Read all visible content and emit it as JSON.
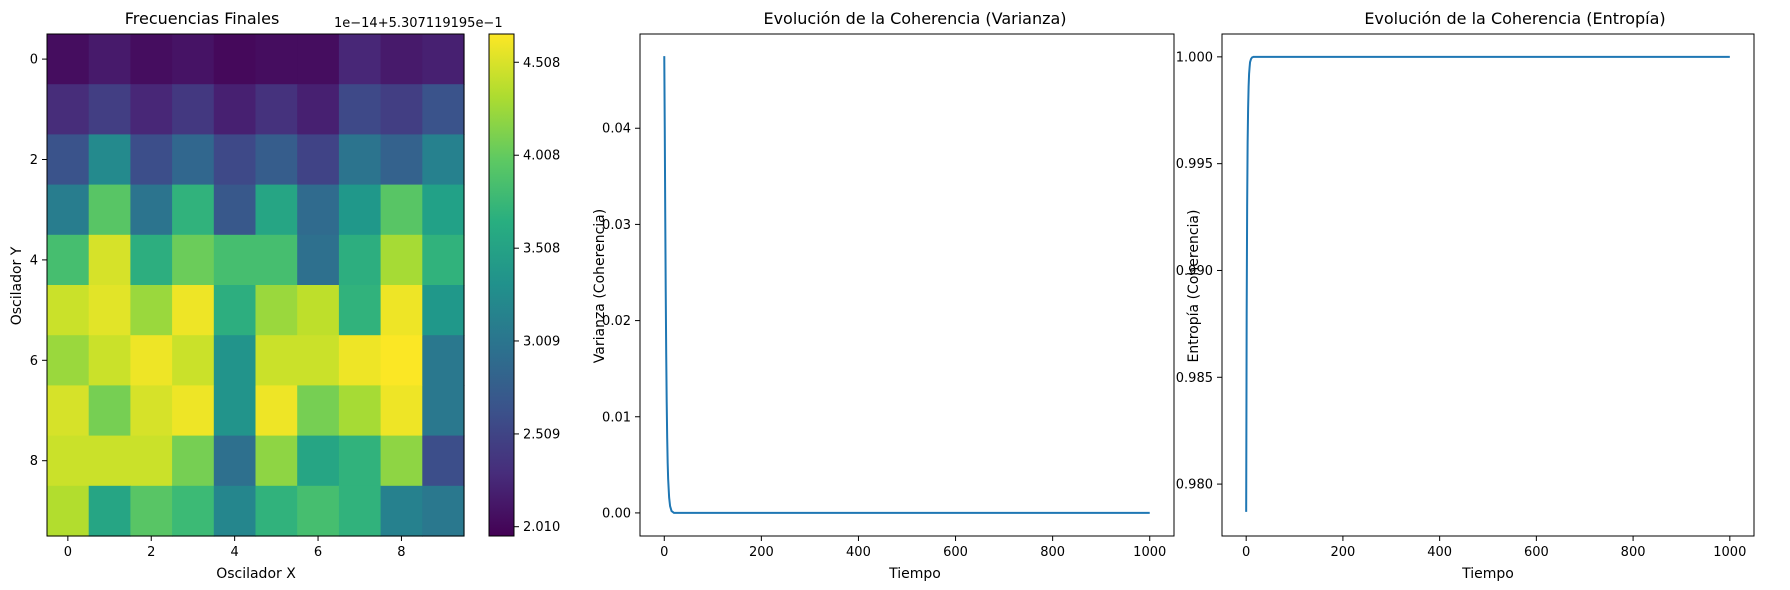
{
  "chart_data": [
    {
      "type": "heatmap",
      "title": "Frecuencias Finales",
      "xlabel": "Oscilador X",
      "ylabel": "Oscilador Y",
      "colormap": "viridis",
      "offset_text": "1e−14+5.307119195e−1",
      "xticks": [
        "0",
        "2",
        "4",
        "6",
        "8"
      ],
      "yticks": [
        "0",
        "2",
        "4",
        "6",
        "8"
      ],
      "colorbar": {
        "ticks": [
          {
            "value": 2.01,
            "label": "2.010"
          },
          {
            "value": 2.509,
            "label": "2.509"
          },
          {
            "value": 3.009,
            "label": "3.009"
          },
          {
            "value": 3.508,
            "label": "3.508"
          },
          {
            "value": 4.008,
            "label": "4.008"
          },
          {
            "value": 4.508,
            "label": "4.508"
          }
        ],
        "range": [
          1.96,
          4.66
        ]
      },
      "matrix": [
        [
          2.05,
          2.15,
          2.05,
          2.1,
          2.02,
          2.05,
          2.05,
          2.25,
          2.15,
          2.2
        ],
        [
          2.3,
          2.45,
          2.25,
          2.4,
          2.2,
          2.35,
          2.2,
          2.55,
          2.45,
          2.65
        ],
        [
          2.65,
          3.25,
          2.6,
          2.85,
          2.55,
          2.75,
          2.5,
          3.0,
          2.8,
          3.15
        ],
        [
          3.1,
          3.95,
          3.0,
          3.7,
          2.7,
          3.55,
          2.9,
          3.4,
          3.95,
          3.5
        ],
        [
          3.85,
          4.5,
          3.65,
          4.05,
          3.85,
          3.85,
          2.95,
          3.65,
          4.3,
          3.7
        ],
        [
          4.45,
          4.55,
          4.25,
          4.6,
          3.65,
          4.25,
          4.4,
          3.7,
          4.6,
          3.4
        ],
        [
          4.25,
          4.45,
          4.6,
          4.45,
          3.35,
          4.45,
          4.45,
          4.6,
          4.65,
          3.05
        ],
        [
          4.5,
          4.1,
          4.5,
          4.6,
          3.35,
          4.6,
          4.1,
          4.3,
          4.6,
          3.05
        ],
        [
          4.45,
          4.45,
          4.45,
          4.1,
          2.95,
          4.2,
          3.55,
          3.7,
          4.2,
          2.6
        ],
        [
          4.35,
          3.55,
          3.95,
          3.8,
          3.2,
          3.7,
          3.85,
          3.7,
          3.15,
          3.05
        ]
      ]
    },
    {
      "type": "line",
      "title": "Evolución de la Coherencia (Varianza)",
      "xlabel": "Tiempo",
      "ylabel": "Varianza (Coherencia)",
      "xlim": [
        -50,
        1050
      ],
      "ylim": [
        -0.0024,
        0.0498
      ],
      "xticks": [
        0,
        200,
        400,
        600,
        800,
        1000
      ],
      "yticks": [
        0.0,
        0.01,
        0.02,
        0.03,
        0.04
      ],
      "ytick_decimals": 2,
      "color": "#1f77b4",
      "series": [
        {
          "x": [
            0,
            1,
            2,
            3,
            4,
            5,
            6,
            7,
            8,
            10,
            12,
            15,
            20,
            30,
            50,
            100,
            200,
            400,
            600,
            800,
            1000
          ],
          "y": [
            0.0475,
            0.04,
            0.031,
            0.023,
            0.0165,
            0.0115,
            0.0078,
            0.0052,
            0.0035,
            0.0016,
            0.0007,
            0.0002,
            0.0,
            0.0,
            0.0,
            0.0,
            0.0,
            0.0,
            0.0,
            0.0,
            0.0
          ]
        }
      ]
    },
    {
      "type": "line",
      "title": "Evolución de la Coherencia (Entropía)",
      "xlabel": "Tiempo",
      "ylabel": "Entropía (Coherencia)",
      "xlim": [
        -50,
        1050
      ],
      "ylim": [
        0.97757,
        1.00107
      ],
      "xticks": [
        0,
        200,
        400,
        600,
        800,
        1000
      ],
      "yticks": [
        0.98,
        0.985,
        0.99,
        0.995,
        1.0
      ],
      "ytick_decimals": 3,
      "color": "#1f77b4",
      "series": [
        {
          "x": [
            0,
            1,
            2,
            3,
            4,
            5,
            6,
            7,
            8,
            10,
            12,
            15,
            20,
            30,
            50,
            100,
            200,
            400,
            600,
            800,
            1000
          ],
          "y": [
            0.9787,
            0.988,
            0.993,
            0.996,
            0.9976,
            0.9986,
            0.9992,
            0.9995,
            0.99975,
            0.9999,
            0.99997,
            1.0,
            1.0,
            1.0,
            1.0,
            1.0,
            1.0,
            1.0,
            1.0,
            1.0,
            1.0
          ]
        }
      ]
    }
  ]
}
